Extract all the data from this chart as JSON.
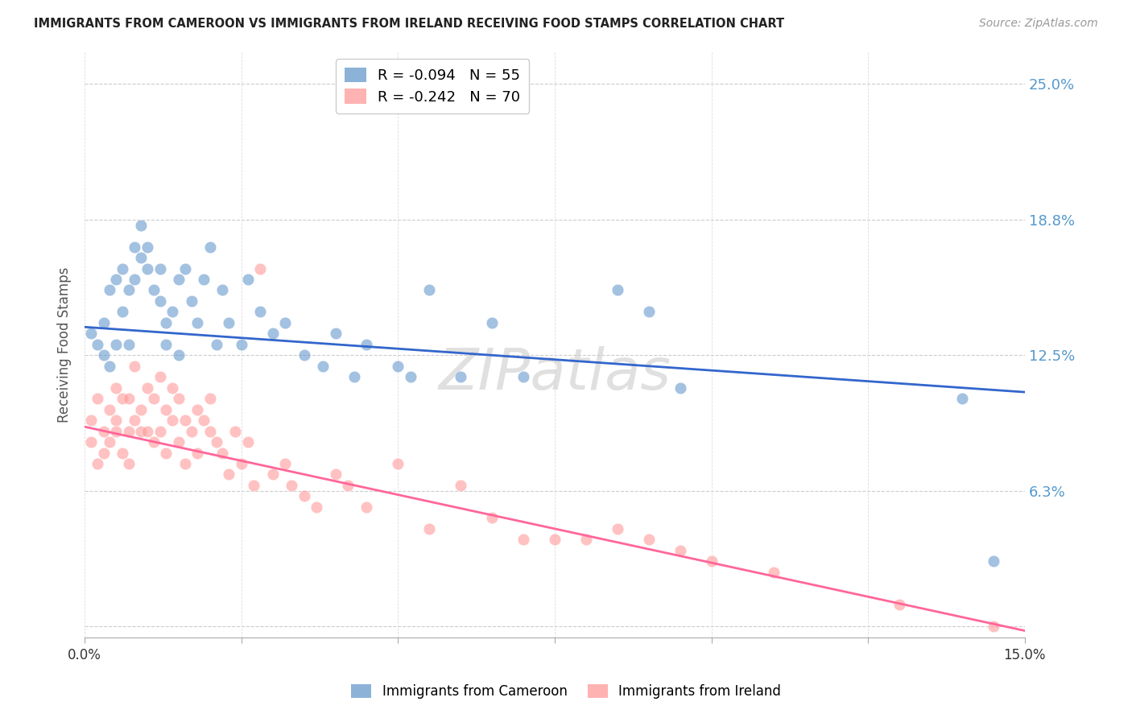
{
  "title": "IMMIGRANTS FROM CAMEROON VS IMMIGRANTS FROM IRELAND RECEIVING FOOD STAMPS CORRELATION CHART",
  "source": "Source: ZipAtlas.com",
  "ylabel": "Receiving Food Stamps",
  "yticks": [
    0.0,
    0.0625,
    0.125,
    0.1875,
    0.25
  ],
  "ytick_labels": [
    "",
    "6.3%",
    "12.5%",
    "18.8%",
    "25.0%"
  ],
  "xmin": 0.0,
  "xmax": 0.15,
  "ymin": -0.005,
  "ymax": 0.265,
  "legend_R1": "R = -0.094",
  "legend_N1": "N = 55",
  "legend_R2": "R = -0.242",
  "legend_N2": "N = 70",
  "color_cameroon": "#6699CC",
  "color_ireland": "#FF9999",
  "trendline_color_cameroon": "#3366CC",
  "trendline_color_ireland": "#FF6699",
  "watermark": "ZIPatlas",
  "cameroon_x": [
    0.001,
    0.002,
    0.003,
    0.003,
    0.004,
    0.004,
    0.005,
    0.005,
    0.006,
    0.006,
    0.007,
    0.007,
    0.008,
    0.008,
    0.009,
    0.009,
    0.01,
    0.01,
    0.011,
    0.012,
    0.012,
    0.013,
    0.013,
    0.014,
    0.015,
    0.015,
    0.016,
    0.017,
    0.018,
    0.019,
    0.02,
    0.021,
    0.022,
    0.023,
    0.025,
    0.026,
    0.028,
    0.03,
    0.032,
    0.035,
    0.038,
    0.04,
    0.043,
    0.045,
    0.05,
    0.052,
    0.055,
    0.06,
    0.065,
    0.07,
    0.085,
    0.09,
    0.095,
    0.14,
    0.145
  ],
  "cameroon_y": [
    0.135,
    0.13,
    0.14,
    0.125,
    0.155,
    0.12,
    0.13,
    0.16,
    0.165,
    0.145,
    0.13,
    0.155,
    0.175,
    0.16,
    0.185,
    0.17,
    0.175,
    0.165,
    0.155,
    0.15,
    0.165,
    0.13,
    0.14,
    0.145,
    0.16,
    0.125,
    0.165,
    0.15,
    0.14,
    0.16,
    0.175,
    0.13,
    0.155,
    0.14,
    0.13,
    0.16,
    0.145,
    0.135,
    0.14,
    0.125,
    0.12,
    0.135,
    0.115,
    0.13,
    0.12,
    0.115,
    0.155,
    0.115,
    0.14,
    0.115,
    0.155,
    0.145,
    0.11,
    0.105,
    0.03
  ],
  "ireland_x": [
    0.001,
    0.001,
    0.002,
    0.002,
    0.003,
    0.003,
    0.004,
    0.004,
    0.005,
    0.005,
    0.005,
    0.006,
    0.006,
    0.007,
    0.007,
    0.007,
    0.008,
    0.008,
    0.009,
    0.009,
    0.01,
    0.01,
    0.011,
    0.011,
    0.012,
    0.012,
    0.013,
    0.013,
    0.014,
    0.014,
    0.015,
    0.015,
    0.016,
    0.016,
    0.017,
    0.018,
    0.018,
    0.019,
    0.02,
    0.02,
    0.021,
    0.022,
    0.023,
    0.024,
    0.025,
    0.026,
    0.027,
    0.028,
    0.03,
    0.032,
    0.033,
    0.035,
    0.037,
    0.04,
    0.042,
    0.045,
    0.05,
    0.055,
    0.06,
    0.065,
    0.07,
    0.075,
    0.08,
    0.085,
    0.09,
    0.095,
    0.1,
    0.11,
    0.13,
    0.145
  ],
  "ireland_y": [
    0.095,
    0.085,
    0.105,
    0.075,
    0.09,
    0.08,
    0.1,
    0.085,
    0.095,
    0.11,
    0.09,
    0.08,
    0.105,
    0.09,
    0.105,
    0.075,
    0.095,
    0.12,
    0.09,
    0.1,
    0.11,
    0.09,
    0.105,
    0.085,
    0.115,
    0.09,
    0.1,
    0.08,
    0.095,
    0.11,
    0.105,
    0.085,
    0.095,
    0.075,
    0.09,
    0.1,
    0.08,
    0.095,
    0.09,
    0.105,
    0.085,
    0.08,
    0.07,
    0.09,
    0.075,
    0.085,
    0.065,
    0.165,
    0.07,
    0.075,
    0.065,
    0.06,
    0.055,
    0.07,
    0.065,
    0.055,
    0.075,
    0.045,
    0.065,
    0.05,
    0.04,
    0.04,
    0.04,
    0.045,
    0.04,
    0.035,
    0.03,
    0.025,
    0.01,
    0.0
  ],
  "trendline_cam_x0": 0.0,
  "trendline_cam_x1": 0.15,
  "trendline_cam_y0": 0.138,
  "trendline_cam_y1": 0.108,
  "trendline_ire_x0": 0.0,
  "trendline_ire_x1": 0.15,
  "trendline_ire_y0": 0.092,
  "trendline_ire_y1": -0.002
}
